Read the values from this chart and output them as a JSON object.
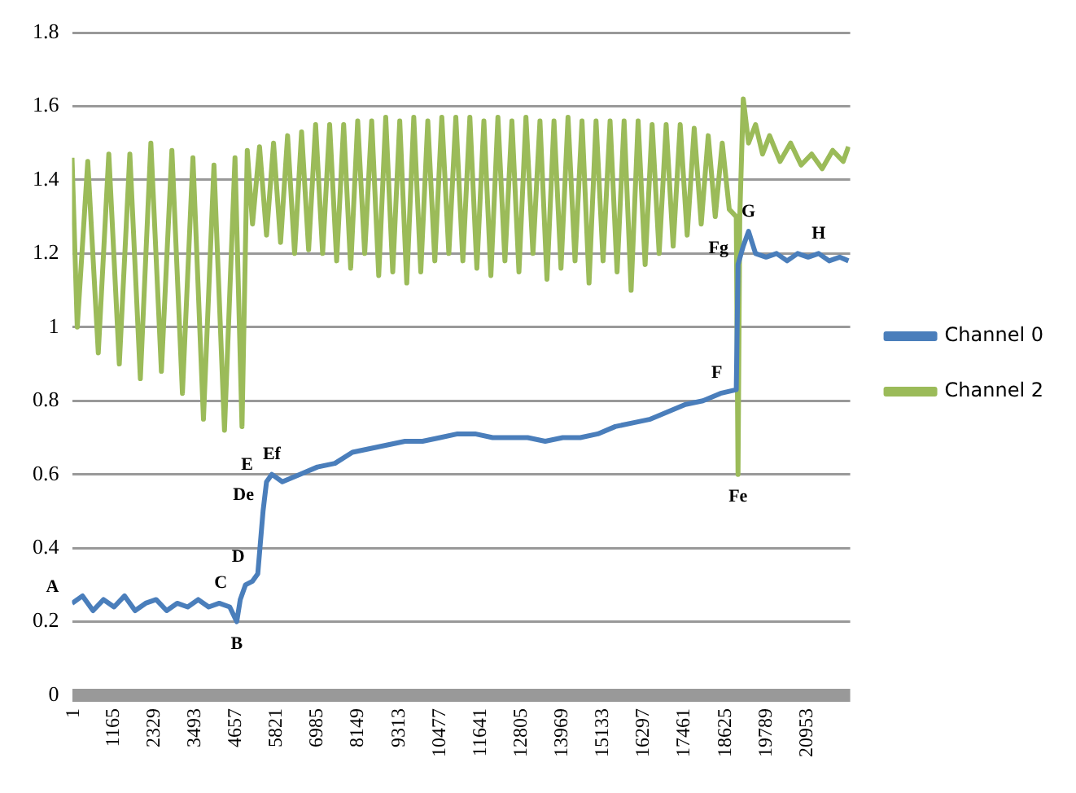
{
  "chart_data": {
    "type": "line",
    "xlim": [
      1,
      22200
    ],
    "xticks": [
      1,
      1165,
      2329,
      3493,
      4657,
      5821,
      6985,
      8149,
      9313,
      10477,
      11641,
      12805,
      13969,
      15133,
      16297,
      17461,
      18625,
      19789,
      20953
    ],
    "ylim": [
      0,
      1.8
    ],
    "yticks": [
      0,
      0.2,
      0.4,
      0.6,
      0.8,
      1,
      1.2,
      1.4,
      1.6,
      1.8
    ],
    "grid": "y",
    "legend": "right",
    "marker": "none",
    "line_style": "solid",
    "series": [
      {
        "name": "Channel 0",
        "color": "#4a7ebb",
        "x": [
          1,
          300,
          600,
          900,
          1200,
          1500,
          1800,
          2100,
          2400,
          2700,
          3000,
          3300,
          3600,
          3900,
          4200,
          4500,
          4700,
          4800,
          4950,
          5150,
          5300,
          5450,
          5550,
          5700,
          6000,
          6500,
          7000,
          7500,
          8000,
          8500,
          9000,
          9500,
          10000,
          10500,
          11000,
          11500,
          12000,
          12500,
          13000,
          13500,
          14000,
          14500,
          15000,
          15500,
          16000,
          16500,
          17000,
          17500,
          18000,
          18500,
          18950,
          19000,
          19150,
          19300,
          19500,
          19800,
          20100,
          20400,
          20700,
          21000,
          21300,
          21600,
          21900,
          22150
        ],
        "values": [
          0.25,
          0.27,
          0.23,
          0.26,
          0.24,
          0.27,
          0.23,
          0.25,
          0.26,
          0.23,
          0.25,
          0.24,
          0.26,
          0.24,
          0.25,
          0.24,
          0.2,
          0.26,
          0.3,
          0.31,
          0.33,
          0.5,
          0.58,
          0.6,
          0.58,
          0.6,
          0.62,
          0.63,
          0.66,
          0.67,
          0.68,
          0.69,
          0.69,
          0.7,
          0.71,
          0.71,
          0.7,
          0.7,
          0.7,
          0.69,
          0.7,
          0.7,
          0.71,
          0.73,
          0.74,
          0.75,
          0.77,
          0.79,
          0.8,
          0.82,
          0.83,
          1.17,
          1.22,
          1.26,
          1.2,
          1.19,
          1.2,
          1.18,
          1.2,
          1.19,
          1.2,
          1.18,
          1.19,
          1.18
        ]
      },
      {
        "name": "Channel 2",
        "color": "#9bbb59",
        "x": [
          1,
          150,
          450,
          750,
          1050,
          1350,
          1650,
          1950,
          2250,
          2550,
          2850,
          3150,
          3450,
          3750,
          4050,
          4350,
          4650,
          4850,
          5000,
          5150,
          5350,
          5550,
          5750,
          5950,
          6150,
          6350,
          6550,
          6750,
          6950,
          7150,
          7350,
          7550,
          7750,
          7950,
          8150,
          8350,
          8550,
          8750,
          8950,
          9150,
          9350,
          9550,
          9750,
          9950,
          10150,
          10350,
          10550,
          10750,
          10950,
          11150,
          11350,
          11550,
          11750,
          11950,
          12150,
          12350,
          12550,
          12750,
          12950,
          13150,
          13350,
          13550,
          13750,
          13950,
          14150,
          14350,
          14550,
          14750,
          14950,
          15150,
          15350,
          15550,
          15750,
          15950,
          16150,
          16350,
          16550,
          16750,
          16950,
          17150,
          17350,
          17550,
          17750,
          17950,
          18150,
          18350,
          18550,
          18750,
          18950,
          19000,
          19050,
          19150,
          19300,
          19500,
          19700,
          19900,
          20200,
          20500,
          20800,
          21100,
          21400,
          21700,
          22000,
          22150
        ],
        "values": [
          1.46,
          1.0,
          1.45,
          0.93,
          1.47,
          0.9,
          1.47,
          0.86,
          1.5,
          0.88,
          1.48,
          0.82,
          1.46,
          0.75,
          1.44,
          0.72,
          1.46,
          0.73,
          1.48,
          1.28,
          1.49,
          1.25,
          1.5,
          1.23,
          1.52,
          1.2,
          1.53,
          1.21,
          1.55,
          1.2,
          1.55,
          1.18,
          1.55,
          1.16,
          1.56,
          1.2,
          1.56,
          1.14,
          1.57,
          1.15,
          1.56,
          1.12,
          1.57,
          1.15,
          1.56,
          1.18,
          1.57,
          1.2,
          1.57,
          1.18,
          1.57,
          1.16,
          1.56,
          1.14,
          1.57,
          1.18,
          1.56,
          1.15,
          1.57,
          1.2,
          1.56,
          1.13,
          1.56,
          1.16,
          1.57,
          1.18,
          1.56,
          1.12,
          1.56,
          1.18,
          1.56,
          1.15,
          1.56,
          1.1,
          1.56,
          1.17,
          1.55,
          1.2,
          1.55,
          1.22,
          1.55,
          1.25,
          1.54,
          1.28,
          1.52,
          1.3,
          1.5,
          1.32,
          1.3,
          0.6,
          1.3,
          1.62,
          1.5,
          1.55,
          1.47,
          1.52,
          1.45,
          1.5,
          1.44,
          1.47,
          1.43,
          1.48,
          1.45,
          1.49
        ]
      }
    ],
    "annotations": [
      {
        "text": "A",
        "x": 1,
        "y": 0.25
      },
      {
        "text": "B",
        "x": 4700,
        "y": 0.2
      },
      {
        "text": "C",
        "x": 4800,
        "y": 0.26
      },
      {
        "text": "D",
        "x": 5300,
        "y": 0.33
      },
      {
        "text": "De",
        "x": 5450,
        "y": 0.5
      },
      {
        "text": "Ef",
        "x": 5700,
        "y": 0.6
      },
      {
        "text": "E",
        "x": 5550,
        "y": 0.58
      },
      {
        "text": "F",
        "x": 18950,
        "y": 0.83
      },
      {
        "text": "Fe",
        "x": 19000,
        "y": 0.6
      },
      {
        "text": "Fg",
        "x": 19000,
        "y": 1.17
      },
      {
        "text": "G",
        "x": 19300,
        "y": 1.26
      },
      {
        "text": "H",
        "x": 21300,
        "y": 1.2
      }
    ]
  }
}
